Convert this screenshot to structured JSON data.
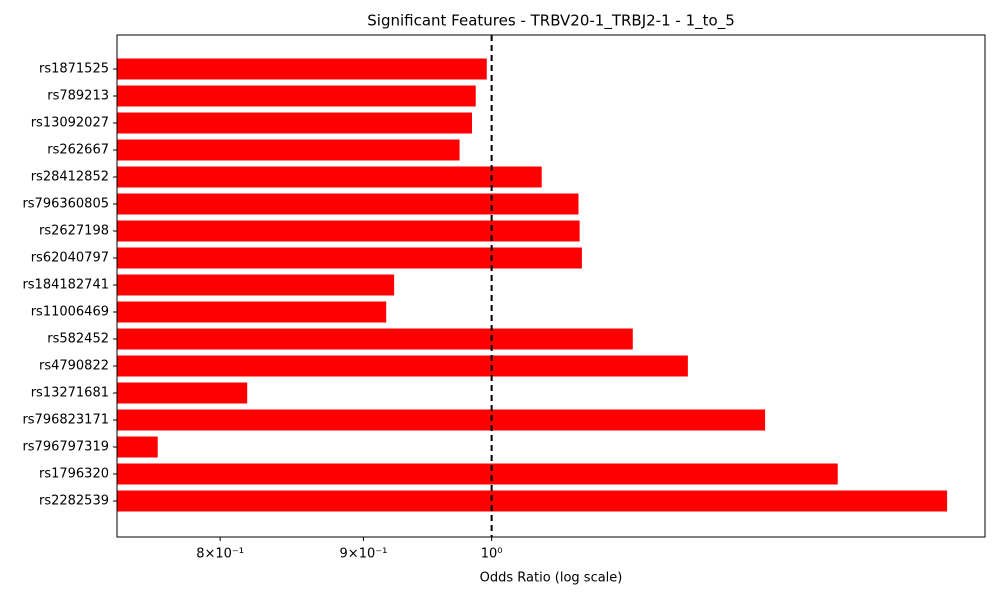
{
  "chart_data": {
    "type": "barh",
    "title": "Significant Features - TRBV20-1_TRBJ2-1 - 1_to_5",
    "xlabel": "Odds Ratio (log scale)",
    "categories": [
      "rs1871525",
      "rs789213",
      "rs13092027",
      "rs262667",
      "rs28412852",
      "rs796360805",
      "rs2627198",
      "rs62040797",
      "rs184182741",
      "rs11006469",
      "rs582452",
      "rs4790822",
      "rs13271681",
      "rs796823171",
      "rs796797319",
      "rs1796320",
      "rs2282539"
    ],
    "values": [
      0.996,
      0.987,
      0.984,
      0.974,
      1.042,
      1.074,
      1.075,
      1.077,
      0.923,
      0.917,
      1.123,
      1.175,
      0.818,
      1.252,
      0.76,
      1.329,
      1.454
    ],
    "color": "#ff0000",
    "xscale": "log",
    "xlim": [
      0.735,
      1.5
    ],
    "xticks": [
      {
        "value": 0.8,
        "label": "8×10⁻¹"
      },
      {
        "value": 0.9,
        "label": "9×10⁻¹"
      },
      {
        "value": 1,
        "label": "10⁰"
      }
    ],
    "reference_line": 1
  }
}
